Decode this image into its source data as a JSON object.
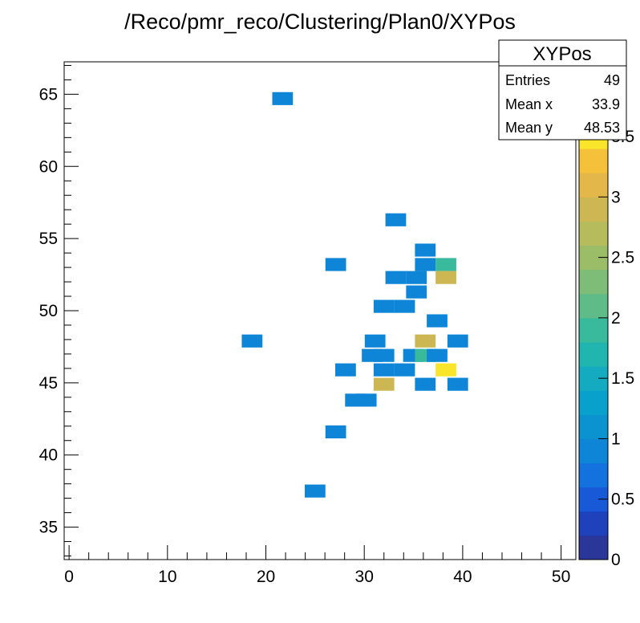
{
  "chart_data": {
    "type": "heatmap",
    "title": "/Reco/pmr_reco/Clustering/Plan0/XYPos",
    "xlabel": "",
    "ylabel": "",
    "xlim": [
      -0.5,
      51.5
    ],
    "ylim": [
      32.75,
      67.25
    ],
    "bin_width_x": 2.1,
    "bin_height_y": 0.9,
    "x_ticks": [
      0,
      10,
      20,
      30,
      40,
      50
    ],
    "y_ticks": [
      35,
      40,
      45,
      50,
      55,
      60,
      65
    ],
    "z_range": [
      0,
      3.6
    ],
    "z_ticks": [
      "0",
      "0.5",
      "1",
      "1.5",
      "2",
      "2.5",
      "3",
      "3.5"
    ],
    "stats": {
      "name": "XYPos",
      "entries_label": "Entries",
      "entries": "49",
      "mean_x_label": "Mean x",
      "mean_x": "33.9",
      "mean_y_label": "Mean y",
      "mean_y": "48.53"
    },
    "cells": [
      {
        "x": 21.7,
        "y": 64.7,
        "z": 1
      },
      {
        "x": 33.2,
        "y": 56.3,
        "z": 1
      },
      {
        "x": 36.2,
        "y": 54.2,
        "z": 1
      },
      {
        "x": 27.1,
        "y": 53.2,
        "z": 1
      },
      {
        "x": 36.2,
        "y": 53.2,
        "z": 1
      },
      {
        "x": 38.3,
        "y": 53.2,
        "z": 2
      },
      {
        "x": 33.2,
        "y": 52.3,
        "z": 1
      },
      {
        "x": 35.3,
        "y": 52.3,
        "z": 1
      },
      {
        "x": 38.3,
        "y": 52.3,
        "z": 3
      },
      {
        "x": 35.3,
        "y": 51.3,
        "z": 1
      },
      {
        "x": 32.0,
        "y": 50.3,
        "z": 1
      },
      {
        "x": 34.1,
        "y": 50.3,
        "z": 1
      },
      {
        "x": 37.4,
        "y": 49.3,
        "z": 1
      },
      {
        "x": 18.6,
        "y": 47.9,
        "z": 1
      },
      {
        "x": 31.1,
        "y": 47.9,
        "z": 1
      },
      {
        "x": 36.2,
        "y": 47.9,
        "z": 3
      },
      {
        "x": 39.5,
        "y": 47.9,
        "z": 1
      },
      {
        "x": 30.8,
        "y": 46.9,
        "z": 1
      },
      {
        "x": 32.0,
        "y": 46.9,
        "z": 1
      },
      {
        "x": 35.0,
        "y": 46.9,
        "z": 1
      },
      {
        "x": 36.2,
        "y": 46.9,
        "z": 2
      },
      {
        "x": 37.4,
        "y": 46.9,
        "z": 1
      },
      {
        "x": 28.1,
        "y": 45.9,
        "z": 1
      },
      {
        "x": 32.0,
        "y": 45.9,
        "z": 1
      },
      {
        "x": 34.1,
        "y": 45.9,
        "z": 1
      },
      {
        "x": 38.3,
        "y": 45.9,
        "z": 3.6
      },
      {
        "x": 32.0,
        "y": 44.9,
        "z": 3
      },
      {
        "x": 36.2,
        "y": 44.9,
        "z": 1
      },
      {
        "x": 39.5,
        "y": 44.9,
        "z": 1
      },
      {
        "x": 29.1,
        "y": 43.8,
        "z": 1
      },
      {
        "x": 30.2,
        "y": 43.8,
        "z": 1
      },
      {
        "x": 27.1,
        "y": 41.6,
        "z": 1
      },
      {
        "x": 25.0,
        "y": 37.5,
        "z": 1
      }
    ]
  }
}
